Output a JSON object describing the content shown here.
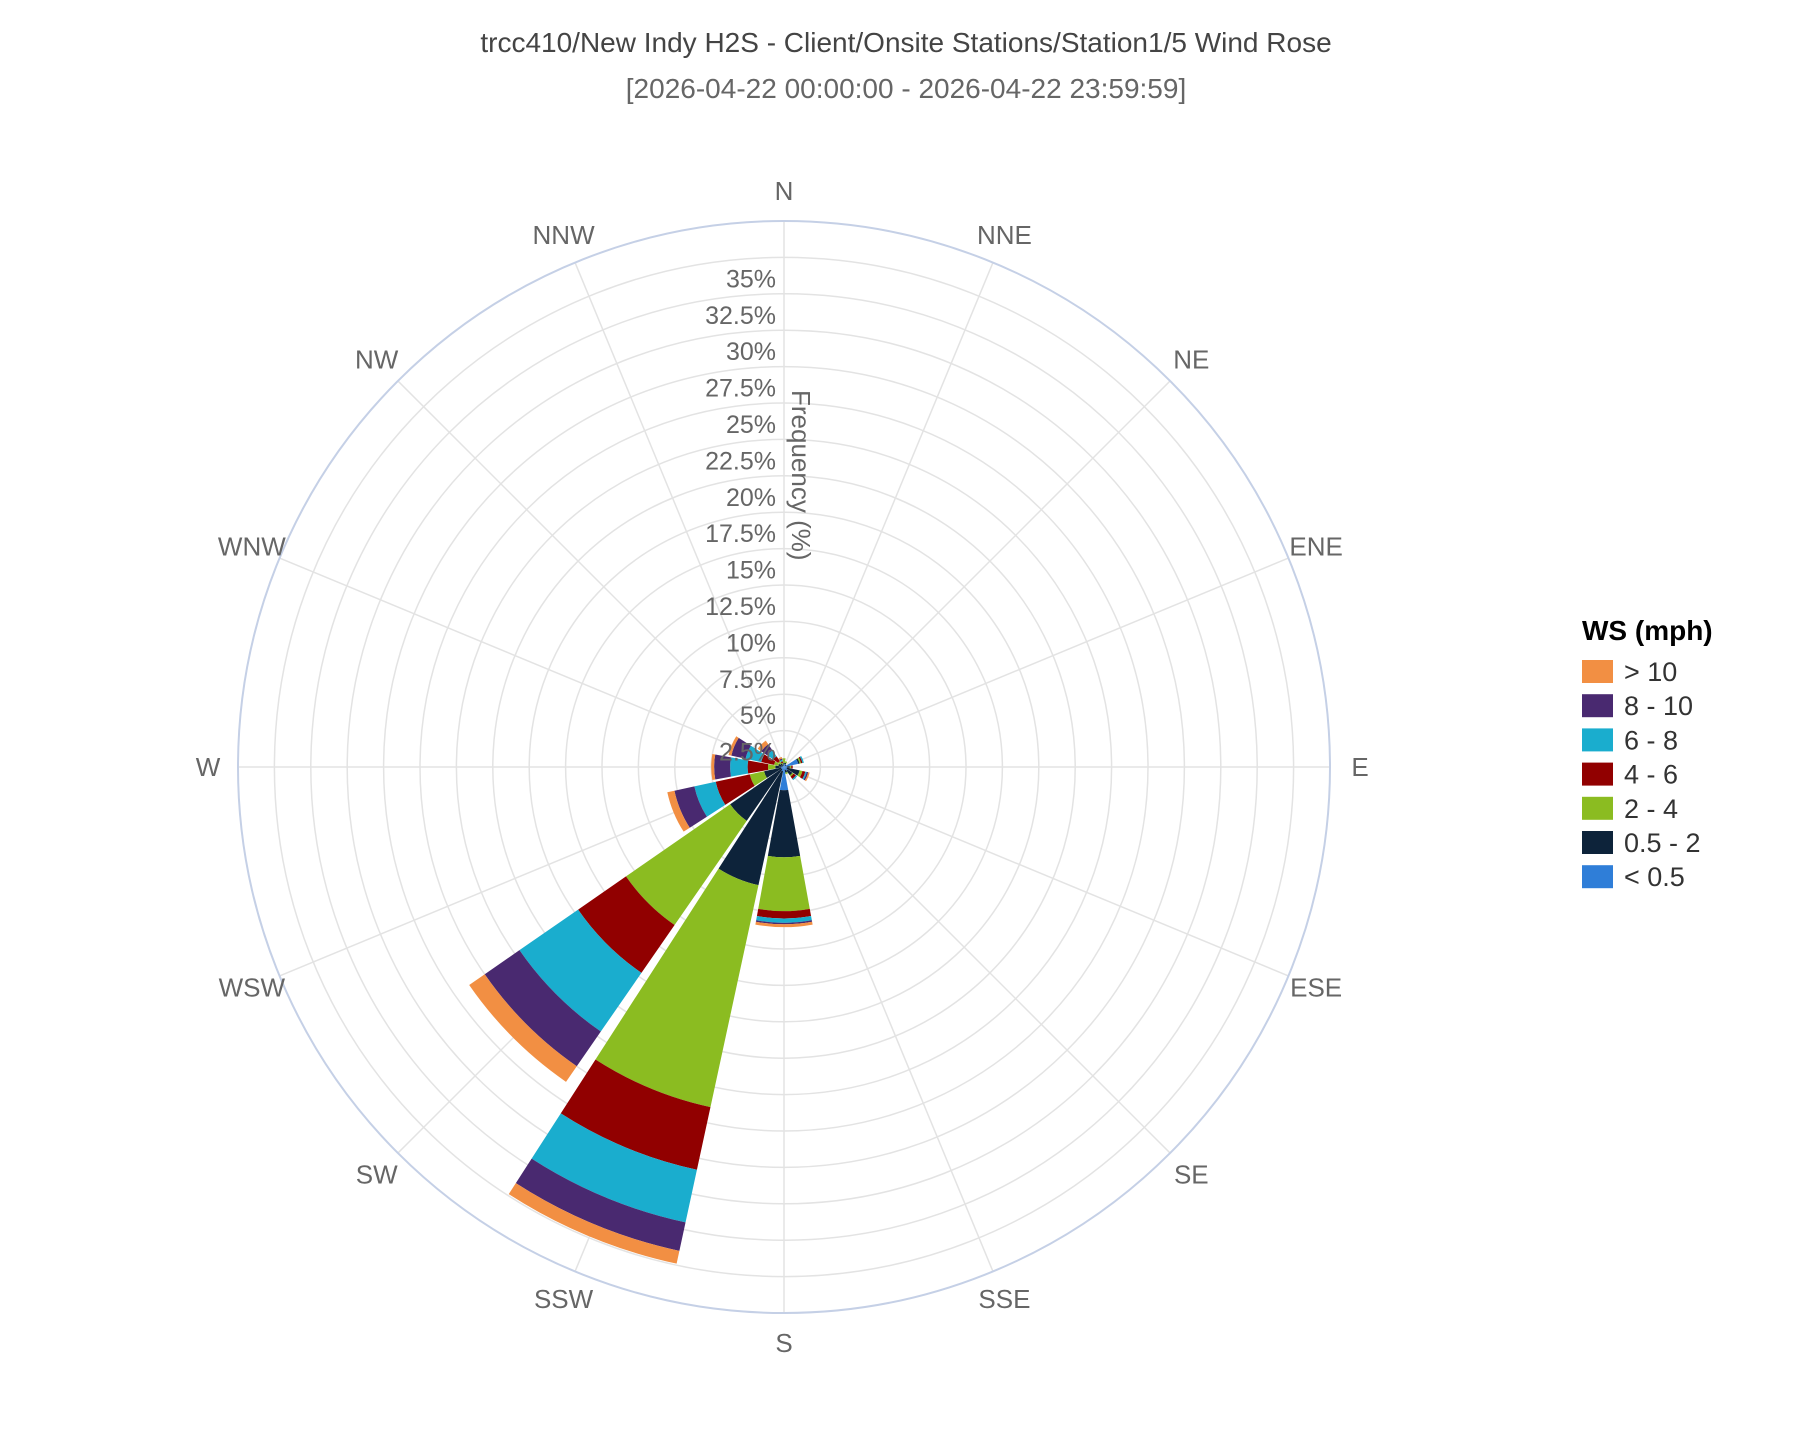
{
  "chart_data": {
    "type": "barpolar",
    "title": "trcc410/New Indy H2S - Client/Onsite Stations/Station1/5 Wind Rose",
    "subtitle": "[2026-04-22 00:00:00 - 2026-04-22 23:59:59]",
    "radial_axis_label": "Frequency (%)",
    "radial_range": [
      0,
      37.5
    ],
    "radial_ticks": [
      "2.5%",
      "5%",
      "7.5%",
      "10%",
      "12.5%",
      "15%",
      "17.5%",
      "20%",
      "22.5%",
      "25%",
      "27.5%",
      "30%",
      "32.5%",
      "35%"
    ],
    "radial_tick_values": [
      2.5,
      5,
      7.5,
      10,
      12.5,
      15,
      17.5,
      20,
      22.5,
      25,
      27.5,
      30,
      32.5,
      35
    ],
    "directions": [
      "N",
      "NNE",
      "NE",
      "ENE",
      "E",
      "ESE",
      "SE",
      "SSE",
      "S",
      "SSW",
      "SW",
      "WSW",
      "W",
      "WNW",
      "NW",
      "NNW"
    ],
    "legend_title": "WS (mph)",
    "legend_position": "right",
    "series": [
      {
        "name": "< 0.5",
        "color": "#2f7ed8",
        "values": [
          0.2,
          0.2,
          0.1,
          1.0,
          0.2,
          0.2,
          0.3,
          0.2,
          1.6,
          0.3,
          0.2,
          0.2,
          0.2,
          0.1,
          0.1,
          0.1
        ]
      },
      {
        "name": "0.5 - 2",
        "color": "#0d233a",
        "values": [
          0.1,
          0.1,
          0.1,
          0.1,
          0.2,
          0.9,
          0.4,
          0.2,
          4.6,
          8.0,
          4.3,
          1.2,
          0.4,
          0.3,
          0.2,
          0.1
        ]
      },
      {
        "name": "2 - 4",
        "color": "#8bbc21",
        "values": [
          0.3,
          0.1,
          0.0,
          0.1,
          0.1,
          0.2,
          0.1,
          0.1,
          3.7,
          15.6,
          8.7,
          1.0,
          0.5,
          0.3,
          0.2,
          0.1
        ]
      },
      {
        "name": "4 - 6",
        "color": "#910000",
        "values": [
          0.0,
          0.0,
          0.0,
          0.1,
          0.1,
          0.2,
          0.2,
          0.0,
          0.5,
          4.4,
          4.0,
          2.4,
          1.4,
          0.9,
          0.4,
          0.1
        ]
      },
      {
        "name": "6 - 8",
        "color": "#1aadce",
        "values": [
          0.0,
          0.0,
          0.0,
          0.1,
          0.0,
          0.1,
          0.1,
          0.0,
          0.3,
          3.7,
          4.9,
          1.5,
          1.2,
          1.1,
          0.5,
          0.1
        ]
      },
      {
        "name": "8 - 10",
        "color": "#492970",
        "values": [
          0.0,
          0.0,
          0.0,
          0.0,
          0.0,
          0.1,
          0.0,
          0.0,
          0.1,
          2.0,
          2.9,
          1.4,
          1.1,
          1.0,
          0.5,
          0.1
        ]
      },
      {
        "name": "> 10",
        "color": "#f28f43",
        "values": [
          0.0,
          0.0,
          0.0,
          0.0,
          0.0,
          0.1,
          0.0,
          0.0,
          0.2,
          0.9,
          1.3,
          0.5,
          0.2,
          0.2,
          0.3,
          0.1
        ]
      }
    ],
    "colors": {
      "grid": "#e3e3e3",
      "outer": "#c5d0e6"
    }
  }
}
